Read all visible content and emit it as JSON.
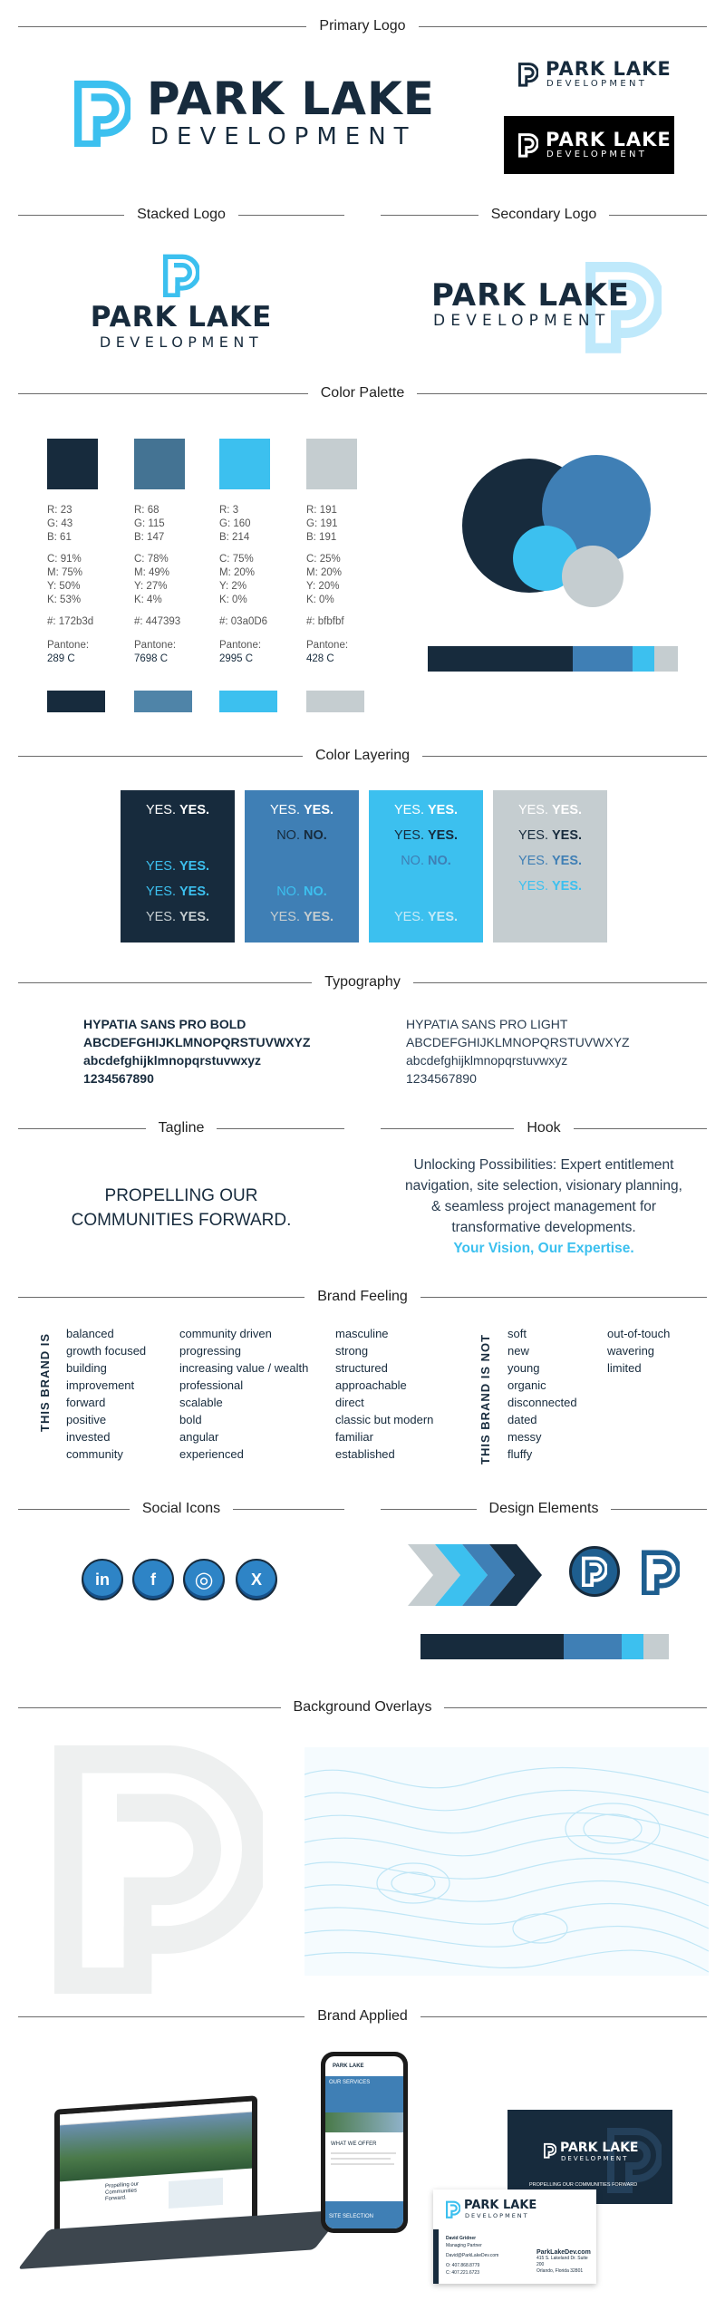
{
  "sections": {
    "primary_logo": "Primary Logo",
    "stacked_logo": "Stacked Logo",
    "secondary_logo": "Secondary Logo",
    "color_palette": "Color Palette",
    "color_layering": "Color Layering",
    "typography": "Typography",
    "tagline": "Tagline",
    "hook": "Hook",
    "brand_feeling": "Brand Feeling",
    "social_icons": "Social Icons",
    "design_elements": "Design Elements",
    "background_overlays": "Background Overlays",
    "brand_applied": "Brand Applied"
  },
  "brand": {
    "name": "PARK LAKE",
    "sub": "DEVELOPMENT",
    "tagline_line1": "PROPELLING OUR",
    "tagline_line2": "COMMUNITIES FORWARD."
  },
  "colors": {
    "navy": "#172b3d",
    "blue": "#447393",
    "sky": "#03a0d6",
    "gray": "#bfbfbf"
  },
  "palette": [
    {
      "rgb": [
        "R: 23",
        "G: 43",
        "B: 61"
      ],
      "cmyk": [
        "C: 91%",
        "M: 75%",
        "Y: 50%",
        "K: 53%"
      ],
      "hex": "#: 172b3d",
      "pantone_label": "Pantone:",
      "pantone": "289 C"
    },
    {
      "rgb": [
        "R: 68",
        "G: 115",
        "B: 147"
      ],
      "cmyk": [
        "C: 78%",
        "M: 49%",
        "Y: 27%",
        "K: 4%"
      ],
      "hex": "#: 447393",
      "pantone_label": "Pantone:",
      "pantone": "7698 C"
    },
    {
      "rgb": [
        "R: 3",
        "G: 160",
        "B: 214"
      ],
      "cmyk": [
        "C: 75%",
        "M: 20%",
        "Y: 2%",
        "K: 0%"
      ],
      "hex": "#: 03a0D6",
      "pantone_label": "Pantone:",
      "pantone": "2995 C"
    },
    {
      "rgb": [
        "R: 191",
        "G: 191",
        "B: 191"
      ],
      "cmyk": [
        "C: 25%",
        "M: 20%",
        "Y: 20%",
        "K: 0%"
      ],
      "hex": "#: bfbfbf",
      "pantone_label": "Pantone:",
      "pantone": "428 C"
    }
  ],
  "layering": {
    "yes_light": "YES.",
    "yes_bold": "YES.",
    "no_light": "NO.",
    "no_bold": "NO."
  },
  "typography": {
    "bold_name": "HYPATIA SANS PRO BOLD",
    "light_name": "HYPATIA SANS PRO LIGHT",
    "upper": "ABCDEFGHIJKLMNOPQRSTUVWXYZ",
    "lower": "abcdefghijklmnopqrstuvwxyz",
    "digits": "1234567890"
  },
  "hook": {
    "line1": "Unlocking Possibilities: Expert entitlement",
    "line2": "navigation, site selection, visionary planning,",
    "line3": "& seamless project management for",
    "line4": "transformative developments.",
    "emphasis": "Your Vision, Our Expertise."
  },
  "feeling": {
    "is_label": "THIS BRAND IS",
    "is_not_label": "THIS BRAND IS NOT",
    "col1": [
      "balanced",
      "growth focused",
      "building",
      "improvement",
      "forward",
      "positive",
      "invested",
      "community"
    ],
    "col2": [
      "community driven",
      "progressing",
      "increasing value / wealth",
      "professional",
      "scalable",
      "bold",
      "angular",
      "experienced"
    ],
    "col3": [
      "masculine",
      "strong",
      "structured",
      "approachable",
      "direct",
      "classic but modern",
      "familiar",
      "established"
    ],
    "col4": [
      "soft",
      "new",
      "young",
      "organic",
      "disconnected",
      "dated",
      "messy",
      "fluffy"
    ],
    "col5": [
      "out-of-touch",
      "wavering",
      "limited"
    ]
  },
  "social": [
    "in",
    "f",
    "◎",
    "X"
  ],
  "applied": {
    "laptop_line1": "Propelling our",
    "laptop_line2": "Communities",
    "laptop_line3": "Forward.",
    "phone_section1": "OUR SERVICES",
    "phone_section2": "WHAT WE OFFER",
    "phone_section3": "SITE SELECTION",
    "card_tagline": "PROPELLING OUR COMMUNITIES FORWARD",
    "card_person": "David Gridner",
    "card_role": "Managing Partner",
    "card_email": "David@ParkLakeDev.com",
    "card_site": "ParkLakeDev.com",
    "card_phone1": "O: 407.868.8779",
    "card_phone2": "C: 407.221.6723",
    "card_address1": "415 S. Lakeland Dr. Suite 200",
    "card_address2": "Orlando, Florida 32801"
  }
}
